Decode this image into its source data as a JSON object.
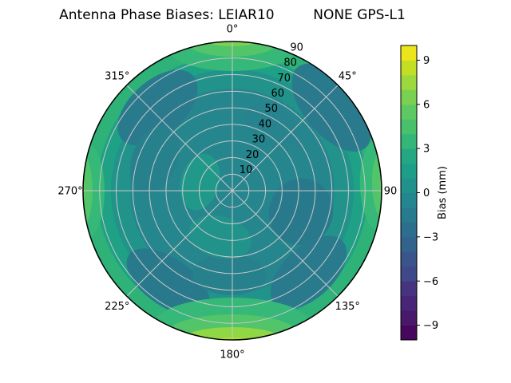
{
  "figure": {
    "title": "Antenna Phase Biases: LEIAR10         NONE GPS-L1",
    "background": "#ffffff"
  },
  "chart_data": {
    "type": "heatmap",
    "subtype": "polar_filled_contour",
    "title": "Antenna Phase Biases: LEIAR10         NONE GPS-L1",
    "projection": "polar",
    "colormap": "viridis",
    "grid": {
      "on": true,
      "color": "#c8c8c8",
      "angular_step_deg": 45,
      "radial_step": 10
    },
    "angular_ticks": [
      {
        "deg": 0,
        "label": "0°",
        "pad": 16
      },
      {
        "deg": 45,
        "label": "45°",
        "pad": 17
      },
      {
        "deg": 90,
        "label": "90",
        "pad": 11
      },
      {
        "deg": 135,
        "label": "135°",
        "pad": 17
      },
      {
        "deg": 180,
        "label": "180°",
        "pad": 18
      },
      {
        "deg": 225,
        "label": "225°",
        "pad": 17
      },
      {
        "deg": 270,
        "label": "270°",
        "pad": 16
      },
      {
        "deg": 315,
        "label": "315°",
        "pad": 17
      }
    ],
    "radial_axis": {
      "min": 0,
      "max": 90,
      "label_angle_deg": 22.5
    },
    "radial_ticks": [
      {
        "value": 10,
        "label": "10"
      },
      {
        "value": 20,
        "label": "20"
      },
      {
        "value": 30,
        "label": "30"
      },
      {
        "value": 40,
        "label": "40"
      },
      {
        "value": 50,
        "label": "50"
      },
      {
        "value": 60,
        "label": "60"
      },
      {
        "value": 70,
        "label": "70"
      },
      {
        "value": 80,
        "label": "80"
      },
      {
        "value": 90,
        "label": "90"
      }
    ],
    "colorbar": {
      "label": "Bias (mm)",
      "vmin": -10,
      "vmax": 10,
      "tick_values": [
        9,
        6,
        3,
        0,
        -3,
        -6,
        -9
      ],
      "tick_labels": [
        "9",
        "6",
        "3",
        "0",
        "−3",
        "−6",
        "−9"
      ],
      "band_colors_bottom_to_top": [
        "#46085c",
        "#48186a",
        "#482576",
        "#463480",
        "#3f4889",
        "#39558c",
        "#32638d",
        "#2d6e8e",
        "#287a8e",
        "#24868e",
        "#21918c",
        "#1e9d89",
        "#24a884",
        "#34b679",
        "#48c16b",
        "#5ec962",
        "#7ad151",
        "#9bd93c",
        "#c2df23",
        "#ece51b"
      ],
      "outline_color": "#000000"
    },
    "field": {
      "base_color": "#26868e",
      "rings": [
        {
          "r0": 128,
          "r1": 187,
          "color": "#21938b"
        },
        {
          "r0": 152,
          "r1": 187,
          "color": "#1fa186"
        },
        {
          "r0": 170,
          "r1": 187,
          "color": "#2eb277"
        }
      ],
      "cold_blobs": [
        {
          "az": 50,
          "r": 162,
          "rt": 66,
          "rr": 34,
          "color": "#2a7a8e",
          "op": 1
        },
        {
          "az": 318,
          "r": 140,
          "rt": 60,
          "rr": 34,
          "color": "#2a7a8e",
          "op": 1
        },
        {
          "az": 292,
          "r": 105,
          "rt": 45,
          "rr": 28,
          "color": "#27818d",
          "op": 1
        },
        {
          "az": 107,
          "r": 90,
          "rt": 42,
          "rr": 40,
          "color": "#29798d",
          "op": 1
        },
        {
          "az": 137,
          "r": 140,
          "rt": 58,
          "rr": 32,
          "color": "#2a7a8e",
          "op": 1
        },
        {
          "az": 215,
          "r": 140,
          "rt": 60,
          "rr": 30,
          "color": "#29798d",
          "op": 1
        },
        {
          "az": 182,
          "r": 105,
          "rt": 46,
          "rr": 26,
          "color": "#27818d",
          "op": 1
        },
        {
          "az": 33,
          "r": 95,
          "rt": 40,
          "rr": 24,
          "color": "#27838d",
          "op": 1
        }
      ],
      "hot_blobs": [
        {
          "az": 0,
          "r": 178,
          "rt": 80,
          "rr": 28,
          "color": "#35b878",
          "op": 1
        },
        {
          "az": 0,
          "r": 187,
          "rt": 58,
          "rr": 19,
          "color": "#52c46a",
          "op": 1
        },
        {
          "az": 0,
          "r": 193,
          "rt": 42,
          "rr": 12,
          "color": "#7ad151",
          "op": 1
        },
        {
          "az": 88,
          "r": 181,
          "rt": 56,
          "rr": 21,
          "color": "#35b878",
          "op": 1
        },
        {
          "az": 88,
          "r": 189,
          "rt": 44,
          "rr": 14,
          "color": "#52c46a",
          "op": 1
        },
        {
          "az": 88,
          "r": 194,
          "rt": 34,
          "rr": 9,
          "color": "#6ecd58",
          "op": 1
        },
        {
          "az": 270,
          "r": 181,
          "rt": 58,
          "rr": 21,
          "color": "#35b878",
          "op": 1
        },
        {
          "az": 270,
          "r": 189,
          "rt": 46,
          "rr": 14,
          "color": "#52c46a",
          "op": 1
        },
        {
          "az": 270,
          "r": 194,
          "rt": 36,
          "rr": 9,
          "color": "#6ecd58",
          "op": 1
        },
        {
          "az": 180,
          "r": 170,
          "rt": 100,
          "rr": 36,
          "color": "#35b878",
          "op": 1
        },
        {
          "az": 180,
          "r": 181,
          "rt": 84,
          "rr": 26,
          "color": "#52c46a",
          "op": 1
        },
        {
          "az": 180,
          "r": 189,
          "rt": 66,
          "rr": 18,
          "color": "#8fd744",
          "op": 1
        },
        {
          "az": 180,
          "r": 195,
          "rt": 48,
          "rr": 11,
          "color": "#b3dd2d",
          "op": 1
        },
        {
          "az": 285,
          "r": 42,
          "rt": 36,
          "rr": 24,
          "color": "#1f9d89",
          "op": 0.8
        },
        {
          "az": 195,
          "r": 60,
          "rt": 40,
          "rr": 26,
          "color": "#1f9d89",
          "op": 0.6
        }
      ]
    },
    "approx_bias_mm_grid": {
      "azimuth_deg": [
        0,
        45,
        90,
        135,
        180,
        225,
        270,
        315
      ],
      "zenith_deg": [
        0,
        30,
        60,
        90
      ],
      "values": [
        [
          0.5,
          0.5,
          1.5,
          6.0
        ],
        [
          0.5,
          -0.5,
          -1.0,
          -1.0
        ],
        [
          0.5,
          0.5,
          1.5,
          5.0
        ],
        [
          0.5,
          -1.0,
          0.5,
          3.0
        ],
        [
          0.5,
          0.5,
          2.0,
          7.0
        ],
        [
          0.5,
          -0.5,
          1.0,
          3.0
        ],
        [
          0.5,
          0.5,
          1.5,
          5.0
        ],
        [
          0.5,
          -1.0,
          0.5,
          3.0
        ]
      ]
    },
    "rim_color": "#000000",
    "tick_font_px": 13,
    "title_font_px": 17
  }
}
